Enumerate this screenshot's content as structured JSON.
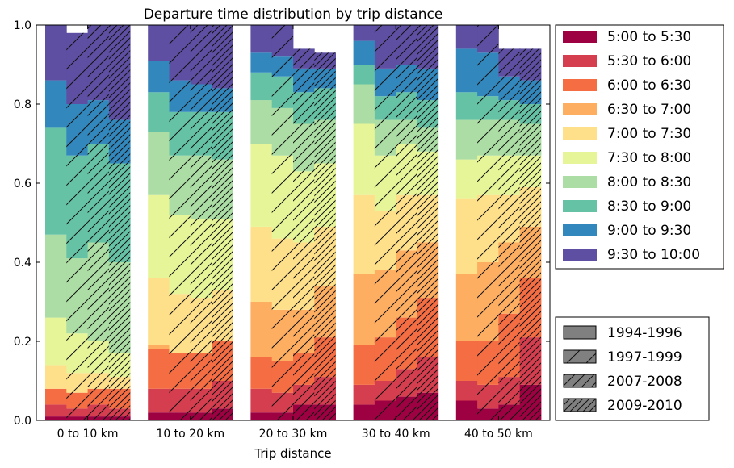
{
  "chart_data": {
    "type": "bar",
    "title": "Departure time distribution by trip distance",
    "xlabel": "Trip distance",
    "ylabel": "",
    "ylim": [
      0,
      1.0
    ],
    "yticks": [
      "0.0",
      "0.2",
      "0.4",
      "0.6",
      "0.8",
      "1.0"
    ],
    "stacked": true,
    "categories": [
      "0 to 10 km",
      "10 to 20 km",
      "20 to 30 km",
      "30 to 40 km",
      "40 to 50 km"
    ],
    "periods": [
      {
        "name": "1994-1996",
        "hatch": "none"
      },
      {
        "name": "1997-1999",
        "hatch": "single"
      },
      {
        "name": "2007-2008",
        "hatch": "double"
      },
      {
        "name": "2009-2010",
        "hatch": "dense"
      }
    ],
    "series": [
      {
        "name": "5:00 to 5:30",
        "color": "#9e0142",
        "values": [
          [
            0.01,
            0.01,
            0.01,
            0.01
          ],
          [
            0.02,
            0.02,
            0.02,
            0.03
          ],
          [
            0.02,
            0.02,
            0.04,
            0.04
          ],
          [
            0.04,
            0.05,
            0.06,
            0.07
          ],
          [
            0.05,
            0.03,
            0.04,
            0.09
          ]
        ]
      },
      {
        "name": "5:30 to 6:00",
        "color": "#d53e4f",
        "values": [
          [
            0.03,
            0.02,
            0.03,
            0.02
          ],
          [
            0.06,
            0.06,
            0.06,
            0.07
          ],
          [
            0.06,
            0.05,
            0.05,
            0.07
          ],
          [
            0.05,
            0.05,
            0.07,
            0.09
          ],
          [
            0.05,
            0.06,
            0.07,
            0.12
          ]
        ]
      },
      {
        "name": "6:00 to 6:30",
        "color": "#f46d43",
        "values": [
          [
            0.04,
            0.04,
            0.04,
            0.05
          ],
          [
            0.1,
            0.09,
            0.09,
            0.1
          ],
          [
            0.08,
            0.08,
            0.08,
            0.1
          ],
          [
            0.1,
            0.11,
            0.13,
            0.15
          ],
          [
            0.1,
            0.11,
            0.16,
            0.15
          ]
        ]
      },
      {
        "name": "6:30 to 7:00",
        "color": "#fdae61",
        "values": [
          [
            0.0,
            0.0,
            0.0,
            0.0
          ],
          [
            0.01,
            0.0,
            0.0,
            0.0
          ],
          [
            0.14,
            0.13,
            0.11,
            0.13
          ],
          [
            0.18,
            0.17,
            0.17,
            0.14
          ],
          [
            0.17,
            0.2,
            0.18,
            0.13
          ]
        ]
      },
      {
        "name": "7:00 to 7:30",
        "color": "#fee08b",
        "values": [
          [
            0.06,
            0.05,
            0.04,
            0.03
          ],
          [
            0.17,
            0.15,
            0.14,
            0.13
          ],
          [
            0.19,
            0.18,
            0.17,
            0.15
          ],
          [
            0.2,
            0.15,
            0.14,
            0.12
          ],
          [
            0.19,
            0.17,
            0.12,
            0.1
          ]
        ]
      },
      {
        "name": "7:30 to 8:00",
        "color": "#e6f598",
        "values": [
          [
            0.12,
            0.1,
            0.08,
            0.06
          ],
          [
            0.21,
            0.2,
            0.2,
            0.18
          ],
          [
            0.21,
            0.21,
            0.18,
            0.16
          ],
          [
            0.18,
            0.14,
            0.13,
            0.11
          ],
          [
            0.1,
            0.1,
            0.1,
            0.08
          ]
        ]
      },
      {
        "name": "8:00 to 8:30",
        "color": "#abdda4",
        "values": [
          [
            0.21,
            0.19,
            0.25,
            0.23
          ],
          [
            0.16,
            0.15,
            0.16,
            0.15
          ],
          [
            0.11,
            0.12,
            0.12,
            0.11
          ],
          [
            0.1,
            0.09,
            0.06,
            0.06
          ],
          [
            0.1,
            0.09,
            0.09,
            0.08
          ]
        ]
      },
      {
        "name": "8:30 to 9:00",
        "color": "#66c2a5",
        "values": [
          [
            0.27,
            0.26,
            0.25,
            0.25
          ],
          [
            0.1,
            0.11,
            0.11,
            0.12
          ],
          [
            0.07,
            0.08,
            0.08,
            0.08
          ],
          [
            0.05,
            0.06,
            0.07,
            0.07
          ],
          [
            0.07,
            0.06,
            0.05,
            0.05
          ]
        ]
      },
      {
        "name": "9:00 to 9:30",
        "color": "#3288bd",
        "values": [
          [
            0.12,
            0.13,
            0.11,
            0.11
          ],
          [
            0.08,
            0.08,
            0.07,
            0.06
          ],
          [
            0.05,
            0.05,
            0.06,
            0.05
          ],
          [
            0.06,
            0.07,
            0.07,
            0.08
          ],
          [
            0.11,
            0.11,
            0.06,
            0.06
          ]
        ]
      },
      {
        "name": "9:30 to 10:00",
        "color": "#5e4fa2",
        "values": [
          [
            0.14,
            0.18,
            0.19,
            0.24
          ],
          [
            0.09,
            0.14,
            0.15,
            0.16
          ],
          [
            0.07,
            0.08,
            0.05,
            0.04
          ],
          [
            0.04,
            0.11,
            0.1,
            0.11
          ],
          [
            0.06,
            0.07,
            0.07,
            0.08
          ]
        ]
      }
    ]
  }
}
